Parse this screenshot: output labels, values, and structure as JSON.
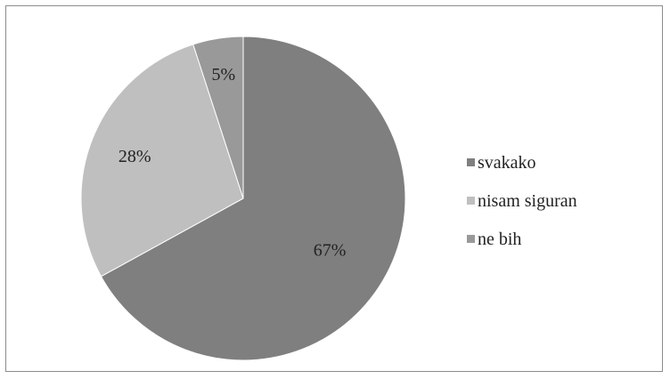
{
  "chart_data": {
    "type": "pie",
    "title": "",
    "slices": [
      {
        "label": "svakako",
        "value": 67,
        "display": "67%",
        "color": "#7f7f7f"
      },
      {
        "label": "nisam siguran",
        "value": 28,
        "display": "28%",
        "color": "#bfbfbf"
      },
      {
        "label": "ne bih",
        "value": 5,
        "display": "5%",
        "color": "#999999"
      }
    ],
    "start_angle_deg": 0,
    "direction": "clockwise",
    "legend": {
      "placement": "right",
      "items": [
        "svakako",
        "nisam siguran",
        "ne bih"
      ]
    },
    "data_labels": true
  }
}
